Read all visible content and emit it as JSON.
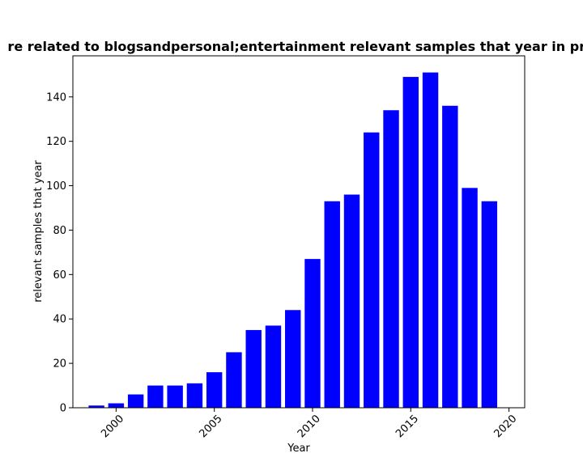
{
  "chart_data": {
    "type": "bar",
    "title": "re related to blogsandpersonal;entertainment relevant samples that year in pri",
    "xlabel": "Year",
    "ylabel": "relevant samples that year",
    "x": [
      1999,
      2000,
      2001,
      2002,
      2003,
      2004,
      2005,
      2006,
      2007,
      2008,
      2009,
      2010,
      2011,
      2012,
      2013,
      2014,
      2015,
      2016,
      2017,
      2018,
      2019
    ],
    "values": [
      1,
      2,
      6,
      10,
      10,
      11,
      16,
      25,
      35,
      37,
      44,
      67,
      93,
      96,
      124,
      134,
      149,
      151,
      136,
      99,
      93
    ],
    "xlim": [
      1997.8,
      2020.8
    ],
    "ylim": [
      0,
      158.5
    ],
    "xticks": [
      2000,
      2005,
      2010,
      2015,
      2020
    ],
    "yticks": [
      0,
      20,
      40,
      60,
      80,
      100,
      120,
      140
    ],
    "bar_color": "#0000ff",
    "grid": false,
    "legend": false
  }
}
